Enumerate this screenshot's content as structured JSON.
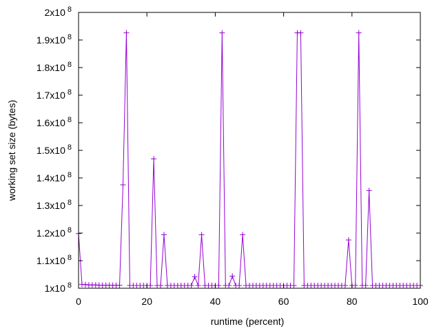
{
  "chart_data": {
    "type": "line",
    "xlabel": "runtime (percent)",
    "ylabel": "working set size (bytes)",
    "xlim": [
      0,
      100
    ],
    "ylim": [
      100000000,
      200000000
    ],
    "x_ticks": [
      0,
      20,
      40,
      60,
      80,
      100
    ],
    "y_ticks": [
      {
        "base": "1x10",
        "exp": "8",
        "value": 100000000
      },
      {
        "base": "1.1x10",
        "exp": "8",
        "value": 110000000
      },
      {
        "base": "1.2x10",
        "exp": "8",
        "value": 120000000
      },
      {
        "base": "1.3x10",
        "exp": "8",
        "value": 130000000
      },
      {
        "base": "1.4x10",
        "exp": "8",
        "value": 140000000
      },
      {
        "base": "1.5x10",
        "exp": "8",
        "value": 150000000
      },
      {
        "base": "1.6x10",
        "exp": "8",
        "value": 160000000
      },
      {
        "base": "1.7x10",
        "exp": "8",
        "value": 170000000
      },
      {
        "base": "1.8x10",
        "exp": "8",
        "value": 180000000
      },
      {
        "base": "1.9x10",
        "exp": "8",
        "value": 190000000
      },
      {
        "base": "2x10",
        "exp": "8",
        "value": 200000000
      }
    ],
    "grid": false,
    "marker": "plus",
    "series": [
      {
        "color": "#9400d3",
        "x": [
          0,
          1,
          2,
          3,
          4,
          5,
          6,
          7,
          8,
          9,
          10,
          11,
          12,
          13,
          14,
          15,
          16,
          17,
          18,
          19,
          20,
          21,
          22,
          23,
          24,
          25,
          26,
          27,
          28,
          29,
          30,
          31,
          32,
          33,
          34,
          35,
          36,
          37,
          38,
          39,
          40,
          41,
          42,
          43,
          44,
          45,
          46,
          47,
          48,
          49,
          50,
          51,
          52,
          53,
          54,
          55,
          56,
          57,
          58,
          59,
          60,
          61,
          62,
          63,
          64,
          65,
          66,
          67,
          68,
          69,
          70,
          71,
          72,
          73,
          74,
          75,
          76,
          77,
          78,
          79,
          80,
          81,
          82,
          83,
          84,
          85,
          86,
          87,
          88,
          89,
          90,
          91,
          92,
          93,
          94,
          95,
          96,
          97,
          98,
          99,
          100
        ],
        "y": [
          119800000,
          101400000,
          101300000,
          101200000,
          101200000,
          101200000,
          101100000,
          101100000,
          101100000,
          101100000,
          101100000,
          101100000,
          101100000,
          137500000,
          192600000,
          101000000,
          101000000,
          101000000,
          101000000,
          101000000,
          101000000,
          101000000,
          146900000,
          101000000,
          101000000,
          119400000,
          101000000,
          101000000,
          101000000,
          101000000,
          101000000,
          101000000,
          101000000,
          101000000,
          104200000,
          101000000,
          119400000,
          101000000,
          101000000,
          101000000,
          101000000,
          101000000,
          192600000,
          101000000,
          101000000,
          104400000,
          101000000,
          101000000,
          119400000,
          101000000,
          101000000,
          101000000,
          101000000,
          101000000,
          101000000,
          101000000,
          101000000,
          101000000,
          101000000,
          101000000,
          101000000,
          101000000,
          101000000,
          101000000,
          192600000,
          192600000,
          101000000,
          101000000,
          101000000,
          101000000,
          101000000,
          101000000,
          101000000,
          101000000,
          101000000,
          101000000,
          101000000,
          101000000,
          101000000,
          117500000,
          101000000,
          101000000,
          192600000,
          101000000,
          101000000,
          135400000,
          101000000,
          101000000,
          101000000,
          101000000,
          101000000,
          101000000,
          101000000,
          101000000,
          101000000,
          101000000,
          101000000,
          101000000,
          101000000,
          101000000,
          101000000
        ]
      }
    ]
  }
}
